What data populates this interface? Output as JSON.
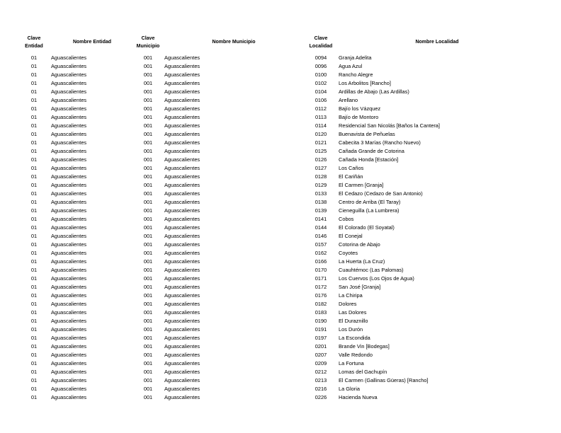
{
  "headers": {
    "clave_entidad": "Clave Entidad",
    "nombre_entidad": "Nombre Entidad",
    "clave_municipio": "Clave Municipio",
    "nombre_municipio": "Nombre Municipio",
    "clave_localidad": "Clave Localidad",
    "nombre_localidad": "Nombre Localidad"
  },
  "rows": [
    [
      "01",
      "Aguascalientes",
      "001",
      "Aguascalientes",
      "0094",
      "Granja Adelita"
    ],
    [
      "01",
      "Aguascalientes",
      "001",
      "Aguascalientes",
      "0096",
      "Agua Azul"
    ],
    [
      "01",
      "Aguascalientes",
      "001",
      "Aguascalientes",
      "0100",
      "Rancho Alegre"
    ],
    [
      "01",
      "Aguascalientes",
      "001",
      "Aguascalientes",
      "0102",
      "Los Arbolitos [Rancho]"
    ],
    [
      "01",
      "Aguascalientes",
      "001",
      "Aguascalientes",
      "0104",
      "Ardillas de Abajo (Las Ardillas)"
    ],
    [
      "01",
      "Aguascalientes",
      "001",
      "Aguascalientes",
      "0106",
      "Arellano"
    ],
    [
      "01",
      "Aguascalientes",
      "001",
      "Aguascalientes",
      "0112",
      "Bajío los Vázquez"
    ],
    [
      "01",
      "Aguascalientes",
      "001",
      "Aguascalientes",
      "0113",
      "Bajío de Montoro"
    ],
    [
      "01",
      "Aguascalientes",
      "001",
      "Aguascalientes",
      "0114",
      "Residencial San Nicolás [Baños la Cantera]"
    ],
    [
      "01",
      "Aguascalientes",
      "001",
      "Aguascalientes",
      "0120",
      "Buenavista de Peñuelas"
    ],
    [
      "01",
      "Aguascalientes",
      "001",
      "Aguascalientes",
      "0121",
      "Cabecita 3 Marías (Rancho Nuevo)"
    ],
    [
      "01",
      "Aguascalientes",
      "001",
      "Aguascalientes",
      "0125",
      "Cañada Grande de Cotorina"
    ],
    [
      "01",
      "Aguascalientes",
      "001",
      "Aguascalientes",
      "0126",
      "Cañada Honda [Estación]"
    ],
    [
      "01",
      "Aguascalientes",
      "001",
      "Aguascalientes",
      "0127",
      "Los Caños"
    ],
    [
      "01",
      "Aguascalientes",
      "001",
      "Aguascalientes",
      "0128",
      "El Cariñán"
    ],
    [
      "01",
      "Aguascalientes",
      "001",
      "Aguascalientes",
      "0129",
      "El Carmen [Granja]"
    ],
    [
      "01",
      "Aguascalientes",
      "001",
      "Aguascalientes",
      "0133",
      "El Cedazo (Cedazo de San Antonio)"
    ],
    [
      "01",
      "Aguascalientes",
      "001",
      "Aguascalientes",
      "0138",
      "Centro de Arriba (El Taray)"
    ],
    [
      "01",
      "Aguascalientes",
      "001",
      "Aguascalientes",
      "0139",
      "Cieneguilla (La Lumbrera)"
    ],
    [
      "01",
      "Aguascalientes",
      "001",
      "Aguascalientes",
      "0141",
      "Cobos"
    ],
    [
      "01",
      "Aguascalientes",
      "001",
      "Aguascalientes",
      "0144",
      "El Colorado (El Soyatal)"
    ],
    [
      "01",
      "Aguascalientes",
      "001",
      "Aguascalientes",
      "0146",
      "El Conejal"
    ],
    [
      "01",
      "Aguascalientes",
      "001",
      "Aguascalientes",
      "0157",
      "Cotorina de Abajo"
    ],
    [
      "01",
      "Aguascalientes",
      "001",
      "Aguascalientes",
      "0162",
      "Coyotes"
    ],
    [
      "01",
      "Aguascalientes",
      "001",
      "Aguascalientes",
      "0166",
      "La Huerta (La Cruz)"
    ],
    [
      "01",
      "Aguascalientes",
      "001",
      "Aguascalientes",
      "0170",
      "Cuauhtémoc (Las Palomas)"
    ],
    [
      "01",
      "Aguascalientes",
      "001",
      "Aguascalientes",
      "0171",
      "Los Cuervos (Los Ojos de Agua)"
    ],
    [
      "01",
      "Aguascalientes",
      "001",
      "Aguascalientes",
      "0172",
      "San José [Granja]"
    ],
    [
      "01",
      "Aguascalientes",
      "001",
      "Aguascalientes",
      "0176",
      "La Chiripa"
    ],
    [
      "01",
      "Aguascalientes",
      "001",
      "Aguascalientes",
      "0182",
      "Dolores"
    ],
    [
      "01",
      "Aguascalientes",
      "001",
      "Aguascalientes",
      "0183",
      "Las Dolores"
    ],
    [
      "01",
      "Aguascalientes",
      "001",
      "Aguascalientes",
      "0190",
      "El Duraznillo"
    ],
    [
      "01",
      "Aguascalientes",
      "001",
      "Aguascalientes",
      "0191",
      "Los Durón"
    ],
    [
      "01",
      "Aguascalientes",
      "001",
      "Aguascalientes",
      "0197",
      "La Escondida"
    ],
    [
      "01",
      "Aguascalientes",
      "001",
      "Aguascalientes",
      "0201",
      "Brande Vin [Bodegas]"
    ],
    [
      "01",
      "Aguascalientes",
      "001",
      "Aguascalientes",
      "0207",
      "Valle Redondo"
    ],
    [
      "01",
      "Aguascalientes",
      "001",
      "Aguascalientes",
      "0209",
      "La Fortuna"
    ],
    [
      "01",
      "Aguascalientes",
      "001",
      "Aguascalientes",
      "0212",
      "Lomas del Gachupín"
    ],
    [
      "01",
      "Aguascalientes",
      "001",
      "Aguascalientes",
      "0213",
      "El Carmen (Gallinas Güeras) [Rancho]"
    ],
    [
      "01",
      "Aguascalientes",
      "001",
      "Aguascalientes",
      "0216",
      "La Gloria"
    ],
    [
      "01",
      "Aguascalientes",
      "001",
      "Aguascalientes",
      "0226",
      "Hacienda Nueva"
    ]
  ]
}
